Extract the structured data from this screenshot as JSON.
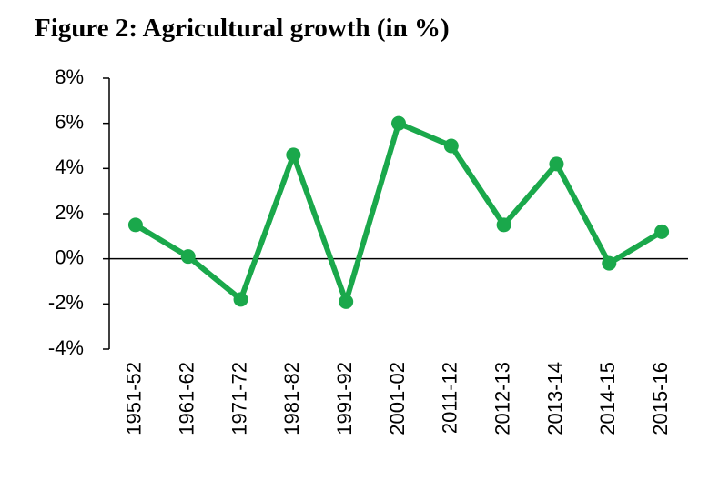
{
  "chart_data": {
    "type": "line",
    "title": "Figure 2: Agricultural growth (in %)",
    "categories": [
      "1951-52",
      "1961-62",
      "1971-72",
      "1981-82",
      "1991-92",
      "2001-02",
      "2011-12",
      "2012-13",
      "2013-14",
      "2014-15",
      "2015-16"
    ],
    "values": [
      1.5,
      0.1,
      -1.8,
      4.6,
      -1.9,
      6.0,
      5.0,
      1.5,
      4.2,
      -0.2,
      1.2
    ],
    "color": "#1aa84b",
    "ylim": [
      -4,
      8
    ],
    "yticks": [
      {
        "value": -4,
        "label": "-4%"
      },
      {
        "value": -2,
        "label": "-2%"
      },
      {
        "value": 0,
        "label": "0%"
      },
      {
        "value": 2,
        "label": "2%"
      },
      {
        "value": 4,
        "label": "4%"
      },
      {
        "value": 6,
        "label": "6%"
      },
      {
        "value": 8,
        "label": "8%"
      }
    ],
    "grid": false
  }
}
